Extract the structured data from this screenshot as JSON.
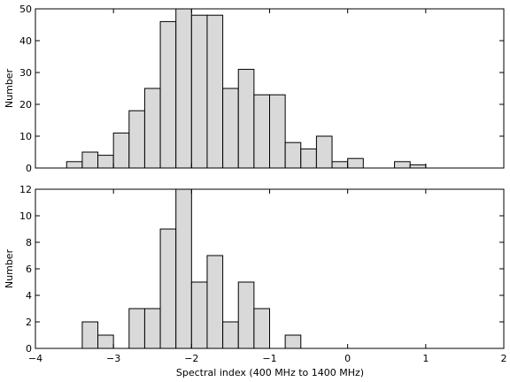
{
  "chart_data": [
    {
      "type": "bar",
      "ylabel": "Number",
      "xlabel": "",
      "xlim": [
        -4,
        2
      ],
      "ylim": [
        0,
        50
      ],
      "x_ticks": [
        -4,
        -3,
        -2,
        -1,
        0,
        1,
        2
      ],
      "y_ticks": [
        0,
        10,
        20,
        30,
        40,
        50
      ],
      "x_tick_labels_shown": false,
      "bin_width": 0.2,
      "bins": [
        {
          "x0": -3.6,
          "count": 2
        },
        {
          "x0": -3.4,
          "count": 5
        },
        {
          "x0": -3.2,
          "count": 4
        },
        {
          "x0": -3.0,
          "count": 11
        },
        {
          "x0": -2.8,
          "count": 18
        },
        {
          "x0": -2.6,
          "count": 25
        },
        {
          "x0": -2.4,
          "count": 46
        },
        {
          "x0": -2.2,
          "count": 50
        },
        {
          "x0": -2.0,
          "count": 48
        },
        {
          "x0": -1.8,
          "count": 48
        },
        {
          "x0": -1.6,
          "count": 25
        },
        {
          "x0": -1.4,
          "count": 31
        },
        {
          "x0": -1.2,
          "count": 23
        },
        {
          "x0": -1.0,
          "count": 23
        },
        {
          "x0": -0.8,
          "count": 8
        },
        {
          "x0": -0.6,
          "count": 6
        },
        {
          "x0": -0.4,
          "count": 10
        },
        {
          "x0": -0.2,
          "count": 2
        },
        {
          "x0": 0.0,
          "count": 3
        },
        {
          "x0": 0.6,
          "count": 2
        },
        {
          "x0": 0.8,
          "count": 1
        }
      ],
      "baseline_extent": [
        -3.6,
        1.8
      ],
      "bar_color": "#d9d9d9",
      "edge_color": "#000000",
      "grid": false
    },
    {
      "type": "bar",
      "ylabel": "Number",
      "xlabel": "Spectral index (400 MHz to 1400 MHz)",
      "xlim": [
        -4,
        2
      ],
      "ylim": [
        0,
        12
      ],
      "x_ticks": [
        -4,
        -3,
        -2,
        -1,
        0,
        1,
        2
      ],
      "x_tick_labels": [
        "−4",
        "−3",
        "−2",
        "−1",
        "0",
        "1",
        "2"
      ],
      "y_ticks": [
        0,
        2,
        4,
        6,
        8,
        10,
        12
      ],
      "x_tick_labels_shown": true,
      "bin_width": 0.2,
      "bins": [
        {
          "x0": -3.4,
          "count": 2
        },
        {
          "x0": -3.2,
          "count": 1
        },
        {
          "x0": -2.8,
          "count": 3
        },
        {
          "x0": -2.6,
          "count": 3
        },
        {
          "x0": -2.4,
          "count": 9
        },
        {
          "x0": -2.2,
          "count": 12
        },
        {
          "x0": -2.0,
          "count": 5
        },
        {
          "x0": -1.8,
          "count": 7
        },
        {
          "x0": -1.6,
          "count": 2
        },
        {
          "x0": -1.4,
          "count": 5
        },
        {
          "x0": -1.2,
          "count": 3
        },
        {
          "x0": -0.8,
          "count": 1
        }
      ],
      "baseline_extent": [
        -3.4,
        1.8
      ],
      "bar_color": "#d9d9d9",
      "edge_color": "#000000",
      "grid": false
    }
  ]
}
